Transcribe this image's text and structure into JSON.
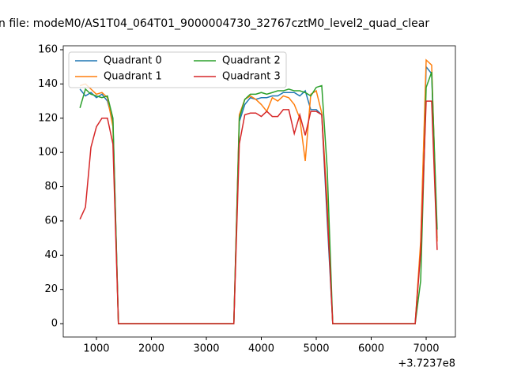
{
  "chart_data": {
    "type": "line",
    "title": "n file: modeM0/AS1T04_064T01_9000004730_32767cztM0_level2_quad_clear",
    "x_offset_label": "+3.7237e8",
    "x": [
      700,
      800,
      900,
      1000,
      1100,
      1200,
      1300,
      1400,
      1500,
      1600,
      1700,
      1800,
      1900,
      2000,
      2100,
      2200,
      2300,
      2400,
      2500,
      2600,
      2700,
      2800,
      2900,
      3000,
      3100,
      3200,
      3300,
      3400,
      3500,
      3600,
      3700,
      3800,
      3900,
      4000,
      4100,
      4200,
      4300,
      4400,
      4500,
      4600,
      4700,
      4800,
      4900,
      5000,
      5100,
      5200,
      5300,
      5400,
      5500,
      5600,
      5700,
      5800,
      5900,
      6000,
      6100,
      6200,
      6300,
      6400,
      6500,
      6600,
      6700,
      6800,
      6900,
      7000,
      7100,
      7200
    ],
    "series": [
      {
        "name": "Quadrant 0",
        "color": "#1f77b4",
        "values": [
          137,
          133,
          135,
          132,
          134,
          130,
          118,
          0,
          0,
          0,
          0,
          0,
          0,
          0,
          0,
          0,
          0,
          0,
          0,
          0,
          0,
          0,
          0,
          0,
          0,
          0,
          0,
          0,
          0,
          118,
          128,
          132,
          131,
          132,
          132,
          133,
          133,
          135,
          135,
          135,
          133,
          136,
          125,
          125,
          122,
          60,
          0,
          0,
          0,
          0,
          0,
          0,
          0,
          0,
          0,
          0,
          0,
          0,
          0,
          0,
          0,
          0,
          45,
          150,
          146,
          50
        ]
      },
      {
        "name": "Quadrant 1",
        "color": "#ff7f0e",
        "values": [
          139,
          140,
          137,
          134,
          135,
          132,
          115,
          0,
          0,
          0,
          0,
          0,
          0,
          0,
          0,
          0,
          0,
          0,
          0,
          0,
          0,
          0,
          0,
          0,
          0,
          0,
          0,
          0,
          0,
          122,
          131,
          133,
          131,
          128,
          124,
          132,
          130,
          133,
          132,
          128,
          120,
          95,
          134,
          136,
          123,
          70,
          0,
          0,
          0,
          0,
          0,
          0,
          0,
          0,
          0,
          0,
          0,
          0,
          0,
          0,
          0,
          0,
          48,
          154,
          151,
          48
        ]
      },
      {
        "name": "Quadrant 2",
        "color": "#2ca02c",
        "values": [
          126,
          137,
          134,
          133,
          132,
          133,
          120,
          0,
          0,
          0,
          0,
          0,
          0,
          0,
          0,
          0,
          0,
          0,
          0,
          0,
          0,
          0,
          0,
          0,
          0,
          0,
          0,
          0,
          0,
          120,
          131,
          134,
          134,
          135,
          134,
          135,
          136,
          136,
          137,
          136,
          136,
          135,
          133,
          138,
          139,
          90,
          0,
          0,
          0,
          0,
          0,
          0,
          0,
          0,
          0,
          0,
          0,
          0,
          0,
          0,
          0,
          0,
          25,
          138,
          147,
          55
        ]
      },
      {
        "name": "Quadrant 3",
        "color": "#d62728",
        "values": [
          61,
          68,
          103,
          115,
          120,
          120,
          105,
          0,
          0,
          0,
          0,
          0,
          0,
          0,
          0,
          0,
          0,
          0,
          0,
          0,
          0,
          0,
          0,
          0,
          0,
          0,
          0,
          0,
          0,
          105,
          122,
          123,
          123,
          121,
          124,
          121,
          121,
          125,
          125,
          111,
          122,
          110,
          124,
          124,
          122,
          65,
          0,
          0,
          0,
          0,
          0,
          0,
          0,
          0,
          0,
          0,
          0,
          0,
          0,
          0,
          0,
          0,
          42,
          130,
          130,
          43
        ]
      }
    ],
    "xlim": [
      396,
      7532
    ],
    "ylim": [
      -7.8,
      162.3
    ],
    "xticks": [
      1000,
      2000,
      3000,
      4000,
      5000,
      6000,
      7000
    ],
    "yticks": [
      0,
      20,
      40,
      60,
      80,
      100,
      120,
      140,
      160
    ],
    "legend": "upper left",
    "legend_columns": 2
  }
}
